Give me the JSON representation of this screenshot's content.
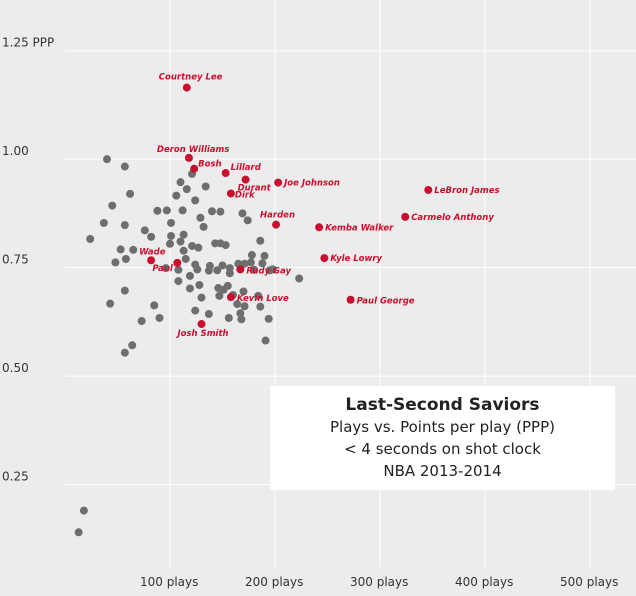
{
  "chart_data": {
    "type": "scatter",
    "title": "Last-Second Saviors",
    "subtitle": [
      "Plays vs. Points per play (PPP)",
      "< 4 seconds on shot clock",
      "NBA 2013-2014"
    ],
    "xlabel": "plays",
    "ylabel": "PPP",
    "xlim": [
      0,
      520
    ],
    "ylim": [
      0.06,
      1.33
    ],
    "x_ticks": [
      {
        "value": 100,
        "label": "100 plays"
      },
      {
        "value": 200,
        "label": "200 plays"
      },
      {
        "value": 300,
        "label": "300 plays"
      },
      {
        "value": 400,
        "label": "400 plays"
      },
      {
        "value": 500,
        "label": "500 plays"
      }
    ],
    "y_ticks": [
      {
        "value": 0.25,
        "label": "0.25"
      },
      {
        "value": 0.5,
        "label": "0.50"
      },
      {
        "value": 0.75,
        "label": "0.75"
      },
      {
        "value": 1.0,
        "label": "1.00"
      },
      {
        "value": 1.25,
        "label": "1.25 PPP"
      }
    ],
    "colors": {
      "highlight": "#c8102e",
      "other": "#6e6e6e",
      "grid": "#ffffff",
      "background": "#ececec"
    },
    "highlighted": [
      {
        "name": "Courtney Lee",
        "x": 116,
        "y": 1.165
      },
      {
        "name": "Deron Williams",
        "x": 118,
        "y": 1.003
      },
      {
        "name": "Bosh",
        "x": 123,
        "y": 0.978
      },
      {
        "name": "Lillard",
        "x": 153,
        "y": 0.968
      },
      {
        "name": "Durant",
        "x": 172,
        "y": 0.953
      },
      {
        "name": "Dirk",
        "x": 158,
        "y": 0.921
      },
      {
        "name": "Joe Johnson",
        "x": 203,
        "y": 0.946
      },
      {
        "name": "LeBron James",
        "x": 346,
        "y": 0.929
      },
      {
        "name": "Carmelo Anthony",
        "x": 324,
        "y": 0.867
      },
      {
        "name": "Harden",
        "x": 201,
        "y": 0.849
      },
      {
        "name": "Kemba Walker",
        "x": 242,
        "y": 0.843
      },
      {
        "name": "Wade",
        "x": 82,
        "y": 0.767
      },
      {
        "name": "Paul",
        "x": 107,
        "y": 0.761
      },
      {
        "name": "Rudy Gay",
        "x": 167,
        "y": 0.746
      },
      {
        "name": "Kyle Lowry",
        "x": 247,
        "y": 0.772
      },
      {
        "name": "Kevin Love",
        "x": 158,
        "y": 0.682
      },
      {
        "name": "Paul George",
        "x": 272,
        "y": 0.676
      },
      {
        "name": "Josh Smith",
        "x": 130,
        "y": 0.62
      }
    ],
    "others": [
      [
        40,
        1.0
      ],
      [
        57,
        0.983
      ],
      [
        121,
        0.966
      ],
      [
        110,
        0.947
      ],
      [
        134,
        0.937
      ],
      [
        116,
        0.931
      ],
      [
        62,
        0.92
      ],
      [
        124,
        0.905
      ],
      [
        45,
        0.893
      ],
      [
        106,
        0.916
      ],
      [
        112,
        0.882
      ],
      [
        97,
        0.882
      ],
      [
        140,
        0.88
      ],
      [
        148,
        0.879
      ],
      [
        169,
        0.875
      ],
      [
        88,
        0.881
      ],
      [
        37,
        0.853
      ],
      [
        57,
        0.848
      ],
      [
        101,
        0.853
      ],
      [
        132,
        0.844
      ],
      [
        174,
        0.859
      ],
      [
        129,
        0.865
      ],
      [
        24,
        0.816
      ],
      [
        76,
        0.836
      ],
      [
        82,
        0.821
      ],
      [
        101,
        0.823
      ],
      [
        113,
        0.826
      ],
      [
        110,
        0.81
      ],
      [
        121,
        0.8
      ],
      [
        127,
        0.796
      ],
      [
        143,
        0.806
      ],
      [
        148,
        0.806
      ],
      [
        153,
        0.802
      ],
      [
        186,
        0.812
      ],
      [
        53,
        0.792
      ],
      [
        65,
        0.791
      ],
      [
        100,
        0.805
      ],
      [
        113,
        0.789
      ],
      [
        178,
        0.779
      ],
      [
        190,
        0.777
      ],
      [
        48,
        0.762
      ],
      [
        115,
        0.77
      ],
      [
        124,
        0.757
      ],
      [
        126,
        0.746
      ],
      [
        138,
        0.754
      ],
      [
        150,
        0.755
      ],
      [
        157,
        0.749
      ],
      [
        165,
        0.759
      ],
      [
        171,
        0.759
      ],
      [
        177,
        0.762
      ],
      [
        188,
        0.76
      ],
      [
        198,
        0.746
      ],
      [
        58,
        0.77
      ],
      [
        96,
        0.749
      ],
      [
        108,
        0.745
      ],
      [
        119,
        0.731
      ],
      [
        137,
        0.743
      ],
      [
        145,
        0.744
      ],
      [
        157,
        0.737
      ],
      [
        180,
        0.745
      ],
      [
        195,
        0.744
      ],
      [
        223,
        0.725
      ],
      [
        57,
        0.697
      ],
      [
        108,
        0.719
      ],
      [
        119,
        0.702
      ],
      [
        128,
        0.71
      ],
      [
        146,
        0.703
      ],
      [
        151,
        0.699
      ],
      [
        155,
        0.708
      ],
      [
        170,
        0.695
      ],
      [
        184,
        0.685
      ],
      [
        171,
        0.661
      ],
      [
        43,
        0.667
      ],
      [
        85,
        0.663
      ],
      [
        130,
        0.681
      ],
      [
        147,
        0.685
      ],
      [
        160,
        0.687
      ],
      [
        164,
        0.666
      ],
      [
        186,
        0.66
      ],
      [
        194,
        0.632
      ],
      [
        73,
        0.627
      ],
      [
        90,
        0.634
      ],
      [
        124,
        0.651
      ],
      [
        137,
        0.643
      ],
      [
        156,
        0.634
      ],
      [
        167,
        0.645
      ],
      [
        168,
        0.631
      ],
      [
        191,
        0.582
      ],
      [
        64,
        0.571
      ],
      [
        57,
        0.554
      ],
      [
        18,
        0.19
      ],
      [
        13,
        0.14
      ]
    ]
  }
}
